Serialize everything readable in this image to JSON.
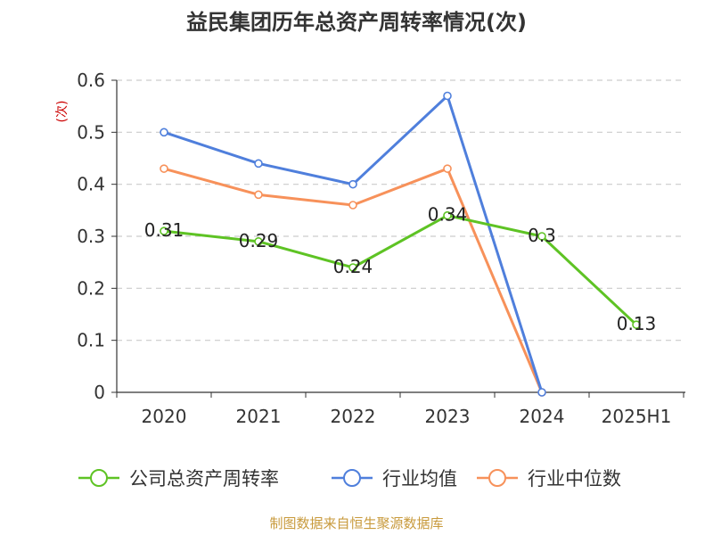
{
  "source_note": "制图数据来自恒生聚源数据库",
  "colors": {
    "company": "#5ec324",
    "avg": "#4f7fdc",
    "median": "#f7915a",
    "unit": "#cc0000",
    "source": "#c89a3c",
    "axis": "#333333",
    "grid": "#cccccc"
  },
  "chart_data": {
    "type": "line",
    "title": "益民集团历年总资产周转率情况(次)",
    "ylabel": "(次)",
    "categories": [
      "2020",
      "2021",
      "2022",
      "2023",
      "2024",
      "2025H1"
    ],
    "yticks": [
      "0",
      "0.1",
      "0.2",
      "0.3",
      "0.4",
      "0.5",
      "0.6"
    ],
    "ylim": [
      0,
      0.6
    ],
    "grid": true,
    "legend_position": "bottom",
    "series": [
      {
        "name": "公司总资产周转率",
        "color_key": "company",
        "values": [
          0.31,
          0.29,
          0.24,
          0.34,
          0.3,
          0.13
        ],
        "labels": [
          "0.31",
          "0.29",
          "0.24",
          "0.34",
          "0.3",
          "0.13"
        ]
      },
      {
        "name": "行业均值",
        "color_key": "avg",
        "values": [
          0.5,
          0.44,
          0.4,
          0.57,
          0,
          null
        ],
        "labels": null
      },
      {
        "name": "行业中位数",
        "color_key": "median",
        "values": [
          0.43,
          0.38,
          0.36,
          0.43,
          0,
          null
        ],
        "labels": null
      }
    ]
  }
}
